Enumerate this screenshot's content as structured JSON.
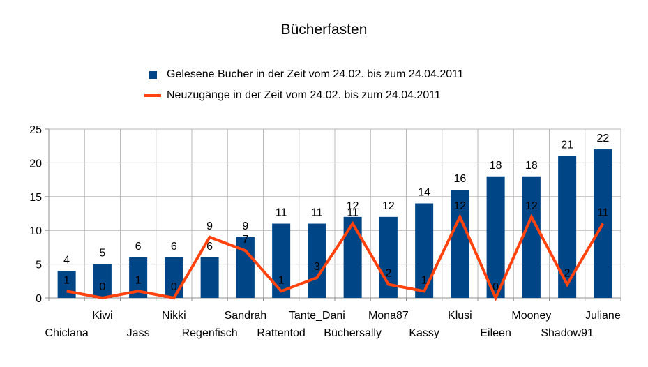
{
  "title": "Bücherfasten",
  "legend": {
    "items": [
      {
        "label": "Gelesene Bücher in der Zeit vom 24.02. bis zum 24.04.2011",
        "marker": "square-swatch-icon",
        "color": "#004586"
      },
      {
        "label": "Neuzugänge in der Zeit vom 24.02. bis zum 24.04.2011",
        "marker": "line-swatch-icon",
        "color": "#FF420E"
      }
    ]
  },
  "chart_data": {
    "type": "bar",
    "title": "Bücherfasten",
    "categories": [
      "Chiclana",
      "Kiwi",
      "Jass",
      "Nikki",
      "Regenfisch",
      "Sandrah",
      "Rattentod",
      "Tante_Dani",
      "Büchersally",
      "Mona87",
      "Kassy",
      "Klusi",
      "Eileen",
      "Mooney",
      "Shadow91",
      "Juliane"
    ],
    "series": [
      {
        "name": "Gelesene Bücher in der Zeit vom 24.02. bis zum 24.04.2011",
        "type": "bar",
        "color": "#004586",
        "values": [
          4,
          5,
          6,
          6,
          6,
          9,
          11,
          11,
          12,
          12,
          14,
          16,
          18,
          18,
          21,
          22
        ]
      },
      {
        "name": "Neuzugänge in der Zeit vom 24.02. bis zum 24.04.2011",
        "type": "line",
        "color": "#FF420E",
        "values": [
          1,
          0,
          1,
          0,
          9,
          7,
          1,
          3,
          11,
          2,
          1,
          12,
          0,
          12,
          2,
          11
        ]
      }
    ],
    "xlabel": "",
    "ylabel": "",
    "ylim": [
      0,
      25
    ],
    "y_ticks": [
      0,
      5,
      10,
      15,
      20,
      25
    ],
    "grid": true,
    "legend_position": "top",
    "data_labels": true,
    "colors": {
      "grid": "#b9b9b9",
      "axis": "#8f8f8f",
      "label": "#000000",
      "background": "#ffffff"
    }
  }
}
